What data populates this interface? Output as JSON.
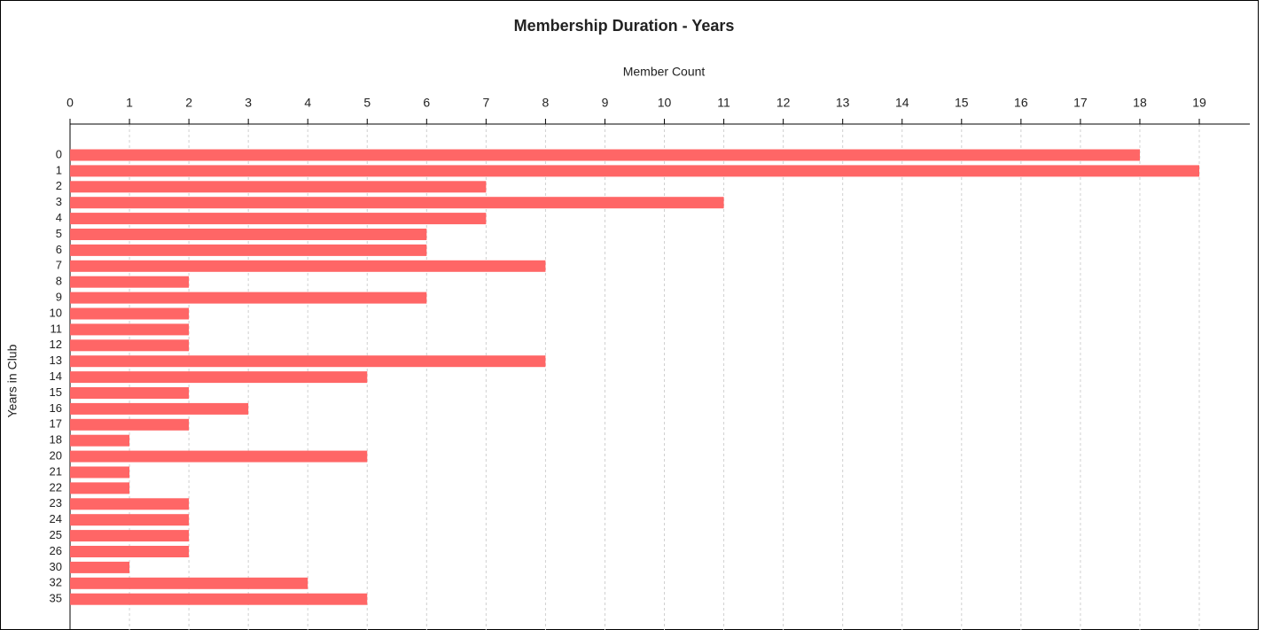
{
  "chart_data": {
    "type": "hbar",
    "title": "Membership Duration - Years",
    "x_label": "Member Count",
    "y_label": "Years in Club",
    "categories": [
      "0",
      "1",
      "2",
      "3",
      "4",
      "5",
      "6",
      "7",
      "8",
      "9",
      "10",
      "11",
      "12",
      "13",
      "14",
      "15",
      "16",
      "17",
      "18",
      "20",
      "21",
      "22",
      "23",
      "24",
      "25",
      "26",
      "30",
      "32",
      "35"
    ],
    "values": [
      18,
      19,
      7,
      11,
      7,
      6,
      6,
      8,
      2,
      6,
      2,
      2,
      2,
      8,
      5,
      2,
      3,
      2,
      1,
      5,
      1,
      1,
      2,
      2,
      2,
      2,
      1,
      4,
      5
    ],
    "color": "#ff6666",
    "xlim": [
      0,
      19.85
    ],
    "xticks": [
      0,
      1,
      2,
      3,
      4,
      5,
      6,
      7,
      8,
      9,
      10,
      11,
      12,
      13,
      14,
      15,
      16,
      17,
      18,
      19
    ],
    "grid": true
  }
}
